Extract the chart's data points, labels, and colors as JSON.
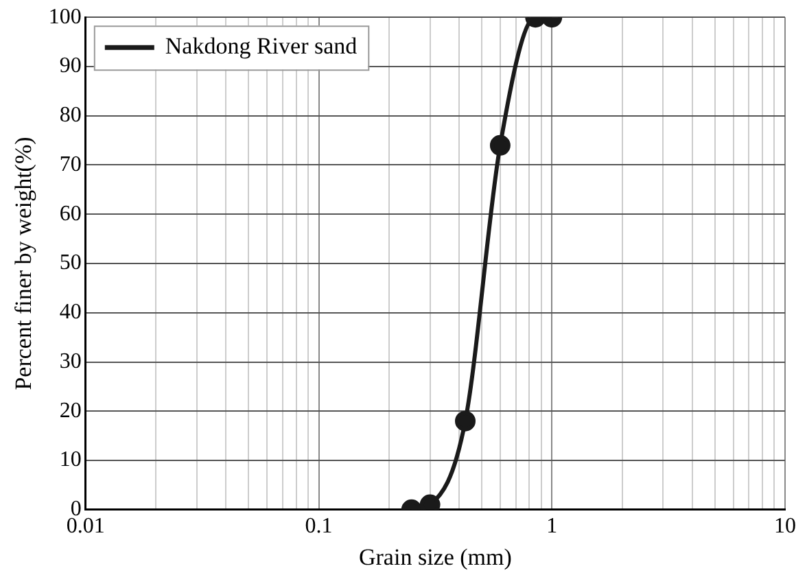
{
  "chart_data": {
    "type": "line",
    "xlabel": "Grain size (mm)",
    "ylabel": "Percent finer by weight(%)",
    "log": "x",
    "grid": true,
    "legend": "top left",
    "marker": "circle",
    "line_style": "solid",
    "xlim": [
      0.01,
      10
    ],
    "ylim": [
      0,
      100
    ],
    "xticks": [
      0.01,
      {
        "value": 0.02,
        "label": null
      },
      {
        "value": 0.03,
        "label": null
      },
      {
        "value": 0.04,
        "label": null
      },
      {
        "value": 0.05,
        "label": null
      },
      {
        "value": 0.06,
        "label": null
      },
      {
        "value": 0.07,
        "label": null
      },
      {
        "value": 0.08,
        "label": null
      },
      {
        "value": 0.09,
        "label": null
      },
      0.1,
      {
        "value": 0.2,
        "label": null
      },
      {
        "value": 0.3,
        "label": null
      },
      {
        "value": 0.4,
        "label": null
      },
      {
        "value": 0.5,
        "label": null
      },
      {
        "value": 0.6,
        "label": null
      },
      {
        "value": 0.7,
        "label": null
      },
      {
        "value": 0.8,
        "label": null
      },
      {
        "value": 0.9,
        "label": null
      },
      1,
      {
        "value": 2,
        "label": null
      },
      {
        "value": 3,
        "label": null
      },
      {
        "value": 4,
        "label": null
      },
      {
        "value": 5,
        "label": null
      },
      {
        "value": 6,
        "label": null
      },
      {
        "value": 7,
        "label": null
      },
      {
        "value": 8,
        "label": null
      },
      {
        "value": 9,
        "label": null
      },
      10
    ],
    "yticks": [
      0,
      10,
      20,
      30,
      40,
      50,
      60,
      70,
      80,
      90,
      100
    ],
    "series": [
      {
        "name": "Nakdong River sand",
        "color": "#1a1a1a",
        "x": [
          0.25,
          0.3,
          0.425,
          0.6,
          0.85,
          1
        ],
        "values": [
          0,
          1,
          18,
          74,
          100,
          100
        ]
      }
    ]
  }
}
